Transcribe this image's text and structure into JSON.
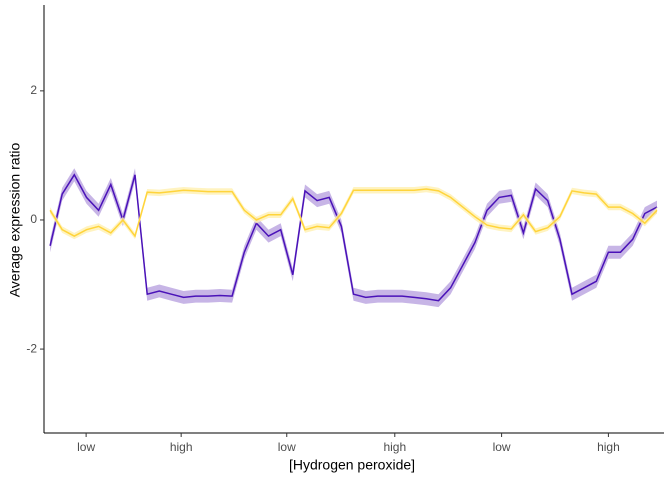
{
  "chart_data": {
    "type": "line",
    "x_label": "[Hydrogen peroxide]",
    "y_label": "Average expression ratio",
    "x": [
      1,
      2,
      3,
      4,
      5,
      6,
      7,
      8,
      9,
      10,
      11,
      12,
      13,
      14,
      15,
      16,
      17,
      18,
      19,
      20,
      21,
      22,
      23,
      24,
      25,
      26,
      27,
      28,
      29,
      30,
      31,
      32,
      33,
      34,
      35,
      36,
      37,
      38,
      39,
      40,
      41,
      42,
      43,
      44,
      45,
      46,
      47,
      48,
      49,
      50,
      51
    ],
    "xlim": [
      0.5,
      51.58
    ],
    "xticks": [
      {
        "value": 3.97,
        "label": "low"
      },
      {
        "value": 11.8,
        "label": "high"
      },
      {
        "value": 20.5,
        "label": "low"
      },
      {
        "value": 29.4,
        "label": "high"
      },
      {
        "value": 38.2,
        "label": "low"
      },
      {
        "value": 47.0,
        "label": "high"
      }
    ],
    "ylim": [
      -3.3,
      3.33
    ],
    "yticks": [
      -2,
      0,
      2
    ],
    "grid": false,
    "series": [
      {
        "color": "#4a12b8",
        "band_color": "#b9a3e0",
        "band": 0.1,
        "values": [
          -0.4,
          0.4,
          0.7,
          0.35,
          0.15,
          0.55,
          0.0,
          0.7,
          -1.15,
          -1.1,
          -1.15,
          -1.2,
          -1.18,
          -1.18,
          -1.17,
          -1.18,
          -0.5,
          -0.05,
          -0.25,
          -0.15,
          -0.85,
          0.45,
          0.3,
          0.35,
          -0.1,
          -1.15,
          -1.2,
          -1.18,
          -1.18,
          -1.18,
          -1.2,
          -1.22,
          -1.25,
          -1.05,
          -0.7,
          -0.35,
          0.15,
          0.35,
          0.38,
          -0.2,
          0.48,
          0.3,
          -0.3,
          -1.15,
          -1.05,
          -0.95,
          -0.5,
          -0.5,
          -0.3,
          0.1,
          0.2
        ]
      },
      {
        "color": "#ffd43b",
        "band_color": "#fff0b0",
        "band": 0.05,
        "values": [
          0.15,
          -0.15,
          -0.25,
          -0.15,
          -0.1,
          -0.2,
          0.0,
          -0.25,
          0.43,
          0.42,
          0.44,
          0.46,
          0.45,
          0.44,
          0.44,
          0.44,
          0.15,
          0.0,
          0.08,
          0.08,
          0.33,
          -0.15,
          -0.1,
          -0.12,
          0.1,
          0.46,
          0.46,
          0.46,
          0.46,
          0.46,
          0.46,
          0.48,
          0.45,
          0.35,
          0.2,
          0.05,
          -0.08,
          -0.12,
          -0.14,
          0.08,
          -0.18,
          -0.12,
          0.05,
          0.45,
          0.42,
          0.4,
          0.2,
          0.2,
          0.1,
          -0.05,
          0.15
        ]
      }
    ]
  }
}
